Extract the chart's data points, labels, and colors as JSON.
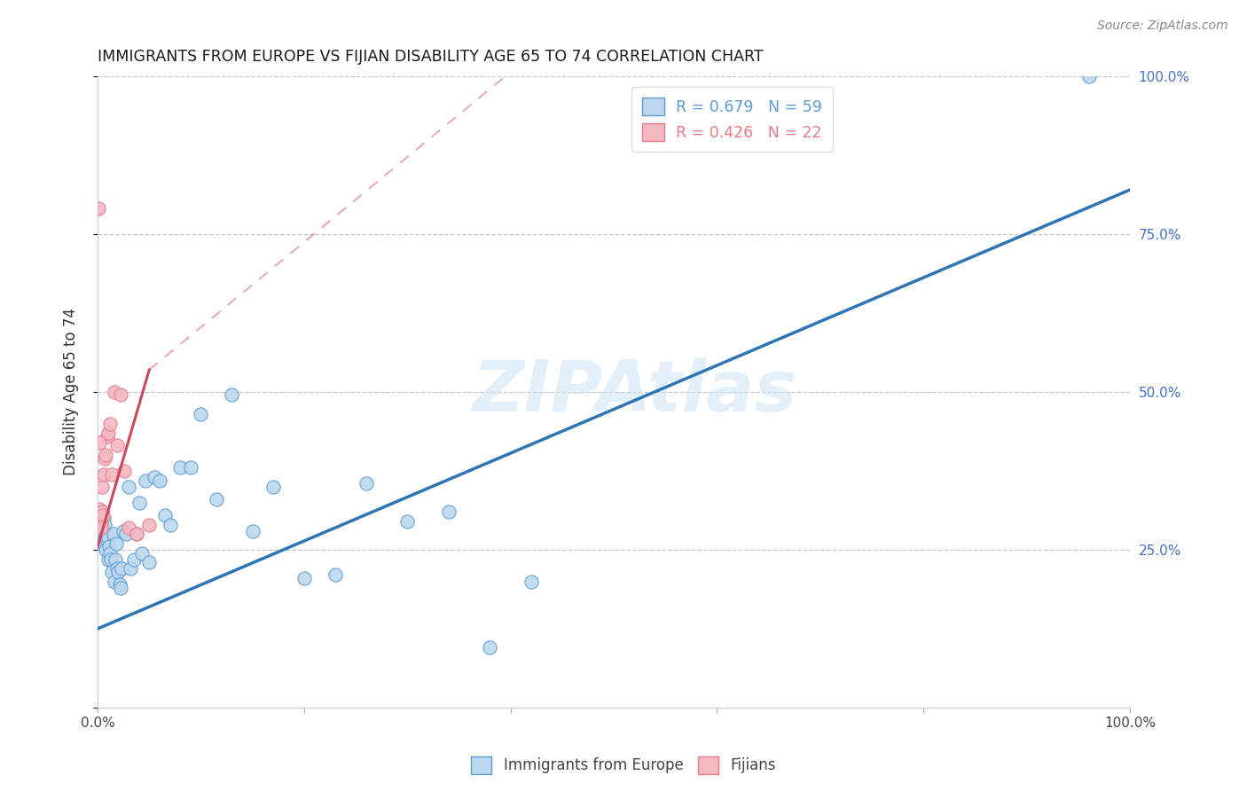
{
  "title": "IMMIGRANTS FROM EUROPE VS FIJIAN DISABILITY AGE 65 TO 74 CORRELATION CHART",
  "source": "Source: ZipAtlas.com",
  "ylabel": "Disability Age 65 to 74",
  "xlim": [
    0.0,
    1.0
  ],
  "ylim": [
    0.0,
    1.0
  ],
  "legend_entries": [
    {
      "label": "R = 0.679   N = 59",
      "color": "#5b9bd5"
    },
    {
      "label": "R = 0.426   N = 22",
      "color": "#e87a8a"
    }
  ],
  "watermark": "ZIPAtlas",
  "background_color": "#ffffff",
  "grid_color": "#c8c8c8",
  "blue_scatter_x": [
    0.001,
    0.002,
    0.003,
    0.003,
    0.004,
    0.004,
    0.005,
    0.005,
    0.006,
    0.006,
    0.007,
    0.007,
    0.008,
    0.008,
    0.009,
    0.01,
    0.01,
    0.011,
    0.012,
    0.013,
    0.014,
    0.015,
    0.016,
    0.017,
    0.018,
    0.019,
    0.02,
    0.021,
    0.022,
    0.023,
    0.025,
    0.027,
    0.03,
    0.032,
    0.035,
    0.038,
    0.04,
    0.043,
    0.046,
    0.05,
    0.055,
    0.06,
    0.065,
    0.07,
    0.08,
    0.09,
    0.1,
    0.115,
    0.13,
    0.15,
    0.17,
    0.2,
    0.23,
    0.26,
    0.3,
    0.34,
    0.38,
    0.42,
    0.96
  ],
  "blue_scatter_y": [
    0.28,
    0.295,
    0.27,
    0.31,
    0.26,
    0.295,
    0.275,
    0.285,
    0.265,
    0.3,
    0.255,
    0.29,
    0.25,
    0.275,
    0.265,
    0.235,
    0.27,
    0.255,
    0.245,
    0.235,
    0.215,
    0.275,
    0.2,
    0.235,
    0.26,
    0.22,
    0.215,
    0.195,
    0.19,
    0.22,
    0.28,
    0.275,
    0.35,
    0.22,
    0.235,
    0.275,
    0.325,
    0.245,
    0.36,
    0.23,
    0.365,
    0.36,
    0.305,
    0.29,
    0.38,
    0.38,
    0.465,
    0.33,
    0.495,
    0.28,
    0.35,
    0.205,
    0.21,
    0.355,
    0.295,
    0.31,
    0.095,
    0.2,
    1.0
  ],
  "blue_line_x": [
    0.0,
    1.0
  ],
  "blue_line_y": [
    0.125,
    0.82
  ],
  "pink_scatter_x": [
    0.001,
    0.002,
    0.003,
    0.004,
    0.004,
    0.005,
    0.006,
    0.007,
    0.008,
    0.009,
    0.01,
    0.012,
    0.014,
    0.016,
    0.019,
    0.022,
    0.026,
    0.03,
    0.038,
    0.05,
    0.003,
    0.002
  ],
  "pink_scatter_y": [
    0.3,
    0.315,
    0.295,
    0.35,
    0.31,
    0.305,
    0.37,
    0.395,
    0.4,
    0.43,
    0.435,
    0.45,
    0.37,
    0.5,
    0.415,
    0.495,
    0.375,
    0.285,
    0.275,
    0.29,
    0.285,
    0.42
  ],
  "pink_scatter_outlier_x": [
    0.001
  ],
  "pink_scatter_outlier_y": [
    0.79
  ],
  "pink_line_x": [
    0.0,
    0.05
  ],
  "pink_line_y": [
    0.255,
    0.535
  ],
  "pink_dashed_line_x": [
    0.05,
    0.41
  ],
  "pink_dashed_line_y": [
    0.535,
    1.02
  ],
  "blue_scatter_color": "#bdd7ee",
  "blue_scatter_edge": "#5b9bd5",
  "pink_scatter_color": "#f4b8c1",
  "pink_scatter_edge": "#e87a8a",
  "blue_line_color": "#2e75b6",
  "pink_line_color": "#c9485b",
  "title_color": "#1a1a1a",
  "right_tick_color": "#4472c4",
  "axis_label_color": "#333333"
}
